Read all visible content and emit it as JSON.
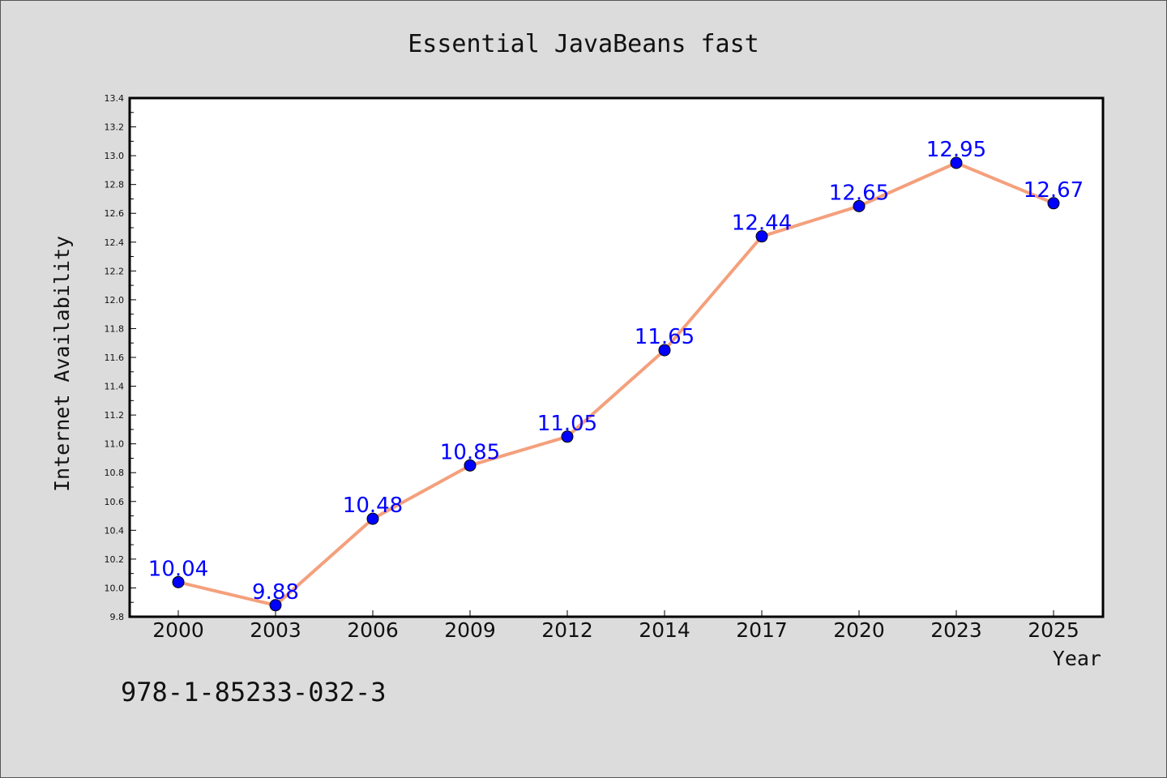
{
  "chart_data": {
    "type": "line",
    "title": "Essential JavaBeans fast",
    "xlabel": "Year",
    "ylabel": "Internet Availability",
    "categories": [
      "2000",
      "2003",
      "2006",
      "2009",
      "2012",
      "2014",
      "2017",
      "2020",
      "2023",
      "2025"
    ],
    "series": [
      {
        "values": [
          10.04,
          9.88,
          10.48,
          10.85,
          11.05,
          11.65,
          12.44,
          12.65,
          12.95,
          12.67
        ]
      }
    ],
    "data_labels": [
      "10.04",
      "9.88",
      "10.48",
      "10.85",
      "11.05",
      "11.65",
      "12.44",
      "12.65",
      "12.95",
      "12.67"
    ],
    "ylim": [
      9.8,
      13.4
    ],
    "yticks": [
      "9.8",
      "10.0",
      "10.2",
      "10.4",
      "10.6",
      "10.8",
      "11.0",
      "11.2",
      "11.4",
      "11.6",
      "11.8",
      "12.0",
      "12.2",
      "12.4",
      "12.6",
      "12.8",
      "13.0",
      "13.2",
      "13.4"
    ],
    "grid": false,
    "colors": {
      "line": "#f4a07c",
      "marker": "#0000ff",
      "labels": "#0000ff",
      "background": "#dcdcdc",
      "plot_area": "#ffffff"
    }
  },
  "footnote": "978-1-85233-032-3"
}
